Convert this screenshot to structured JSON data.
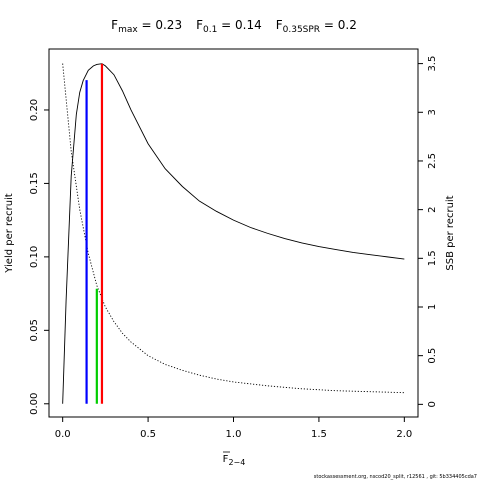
{
  "chart_data": {
    "type": "line",
    "title_parts": [
      {
        "base": "F",
        "sub": "max",
        "value": " = 0.23"
      },
      {
        "base": "F",
        "sub": "0.1",
        "value": " = 0.14"
      },
      {
        "base": "F",
        "sub": "0.35SPR",
        "value": " = 0.2"
      }
    ],
    "xlabel": {
      "base": "F",
      "sub": "2−4"
    },
    "ylabel_left": "Yield per recruit",
    "ylabel_right": "SSB per recruit",
    "xlim": [
      -0.08,
      2.08
    ],
    "ylim_left": [
      -0.009,
      0.2415
    ],
    "ylim_right": [
      -0.13,
      3.65
    ],
    "x_ticks": [
      "0.0",
      "0.5",
      "1.0",
      "1.5",
      "2.0"
    ],
    "x_tick_values": [
      0,
      0.5,
      1.0,
      1.5,
      2.0
    ],
    "y_left_ticks": [
      "0.00",
      "0.05",
      "0.10",
      "0.15",
      "0.20"
    ],
    "y_left_tick_values": [
      0,
      0.05,
      0.1,
      0.15,
      0.2
    ],
    "y_right_ticks": [
      "0",
      "0.5",
      "1",
      "1.5",
      "2",
      "2.5",
      "3",
      "3.5"
    ],
    "y_right_tick_values": [
      0,
      0.5,
      1,
      1.5,
      2,
      2.5,
      3,
      3.5
    ],
    "series": [
      {
        "axis": "left",
        "style": "solid",
        "color": "#000000",
        "x": [
          0,
          0.02,
          0.05,
          0.08,
          0.1,
          0.12,
          0.15,
          0.18,
          0.2,
          0.23,
          0.25,
          0.3,
          0.35,
          0.4,
          0.5,
          0.6,
          0.7,
          0.8,
          0.9,
          1.0,
          1.1,
          1.2,
          1.3,
          1.4,
          1.5,
          1.6,
          1.7,
          1.8,
          1.9,
          2.0
        ],
        "values": [
          0,
          0.07,
          0.155,
          0.197,
          0.212,
          0.22,
          0.227,
          0.23,
          0.231,
          0.2315,
          0.23,
          0.224,
          0.213,
          0.2,
          0.177,
          0.16,
          0.148,
          0.138,
          0.131,
          0.125,
          0.12,
          0.116,
          0.1125,
          0.1095,
          0.107,
          0.105,
          0.103,
          0.1015,
          0.1,
          0.0985
        ]
      },
      {
        "axis": "right",
        "style": "dotted",
        "color": "#000000",
        "x": [
          0,
          0.05,
          0.1,
          0.15,
          0.2,
          0.25,
          0.3,
          0.35,
          0.4,
          0.5,
          0.6,
          0.7,
          0.8,
          0.9,
          1.0,
          1.2,
          1.4,
          1.6,
          1.8,
          2.0
        ],
        "values": [
          3.5,
          2.6,
          2.0,
          1.55,
          1.22,
          1.0,
          0.85,
          0.73,
          0.64,
          0.5,
          0.41,
          0.35,
          0.3,
          0.26,
          0.23,
          0.19,
          0.16,
          0.14,
          0.13,
          0.12
        ]
      }
    ],
    "reference_lines": [
      {
        "name": "F0.1",
        "x": 0.14,
        "y": 0.2203,
        "color": "#0000ff"
      },
      {
        "name": "Fmax",
        "x": 0.23,
        "y": 0.2315,
        "color": "#ff0000"
      },
      {
        "name": "F0.35SPR",
        "x": 0.2,
        "y": 0.0783,
        "color": "#00cd00"
      }
    ],
    "credit": "stockassessment.org, nscod20_split, r12561 , git: 5b334405cda7"
  }
}
